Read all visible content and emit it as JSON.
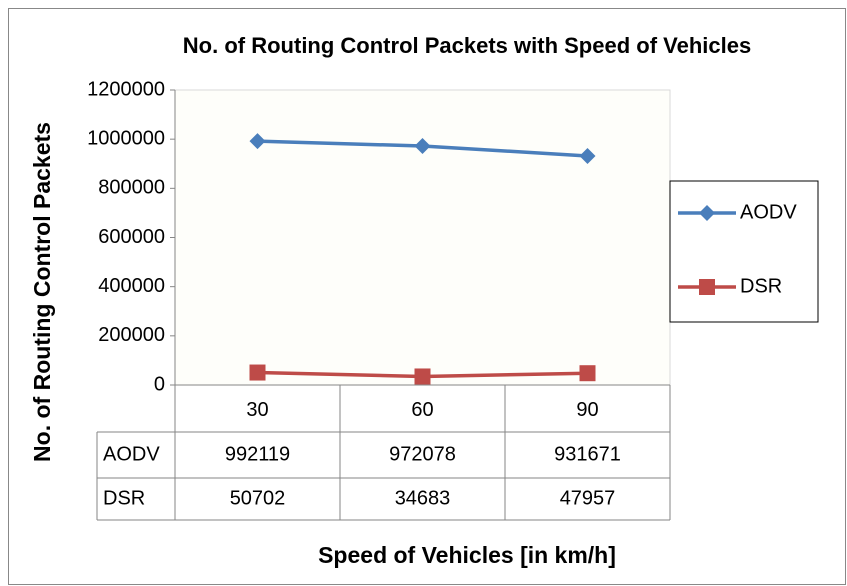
{
  "chart_data": {
    "type": "line",
    "title": "No. of Routing Control Packets with Speed of Vehicles",
    "x_label": "Speed  of  Vehicles [in km/h]",
    "y_label": "No. of Routing Control Packets",
    "categories": [
      "30",
      "60",
      "90"
    ],
    "series": [
      {
        "name": "AODV",
        "color": "#4a7ebb",
        "marker": "diamond",
        "values": [
          992119,
          972078,
          931671
        ]
      },
      {
        "name": "DSR",
        "color": "#be4b48",
        "marker": "square",
        "values": [
          50702,
          34683,
          47957
        ]
      }
    ],
    "ylim": [
      0,
      1200000
    ],
    "yticks": [
      0,
      200000,
      400000,
      600000,
      800000,
      1000000,
      1200000
    ],
    "grid": false,
    "legend": "right",
    "data_table": true
  }
}
